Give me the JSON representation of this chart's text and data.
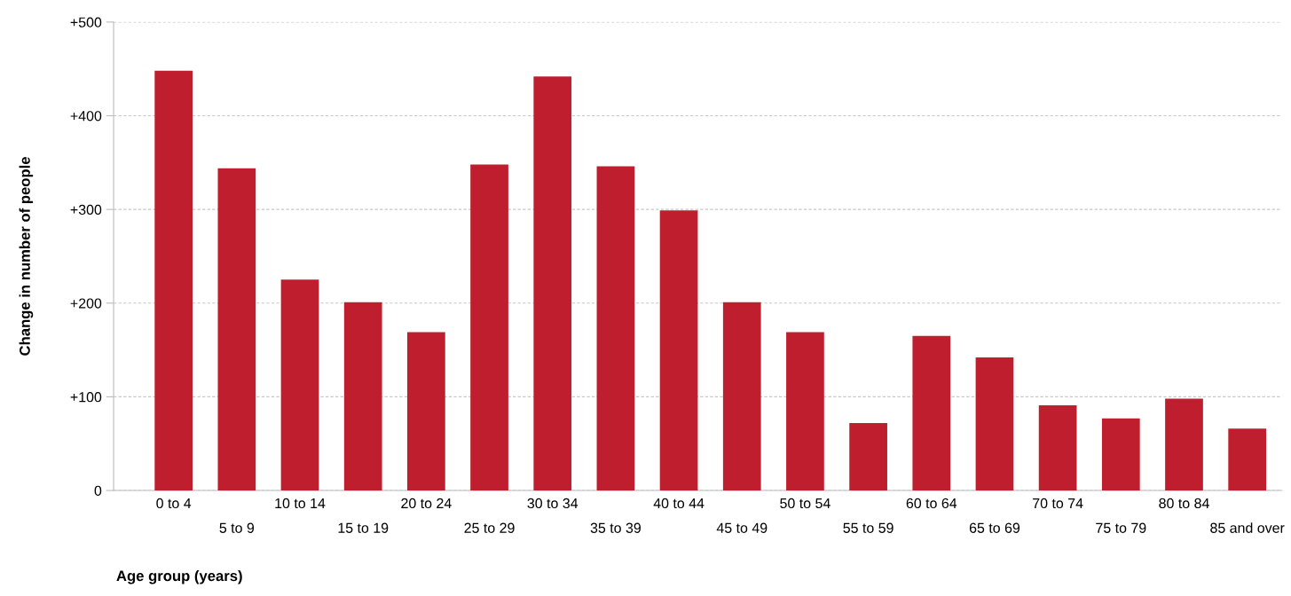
{
  "chart_data": {
    "type": "bar",
    "xlabel": "Age group (years)",
    "ylabel": "Change in number of people",
    "categories": [
      "0 to 4",
      "5 to 9",
      "10 to 14",
      "15 to 19",
      "20 to 24",
      "25 to 29",
      "30 to 34",
      "35 to 39",
      "40 to 44",
      "45 to 49",
      "50 to 54",
      "55 to 59",
      "60 to 64",
      "65 to 69",
      "70 to 74",
      "75 to 79",
      "80 to 84",
      "85 and over"
    ],
    "values": [
      448,
      344,
      225,
      201,
      169,
      348,
      442,
      346,
      299,
      201,
      169,
      72,
      165,
      142,
      91,
      77,
      98,
      66
    ],
    "color": "#be1e2d",
    "ylim": [
      0,
      500
    ],
    "yticks": [
      {
        "value": 0,
        "label": "0"
      },
      {
        "value": 100,
        "label": "+100"
      },
      {
        "value": 200,
        "label": "+200"
      },
      {
        "value": 300,
        "label": "+300"
      },
      {
        "value": 400,
        "label": "+400"
      },
      {
        "value": 500,
        "label": "+500"
      }
    ],
    "grid": "y"
  }
}
